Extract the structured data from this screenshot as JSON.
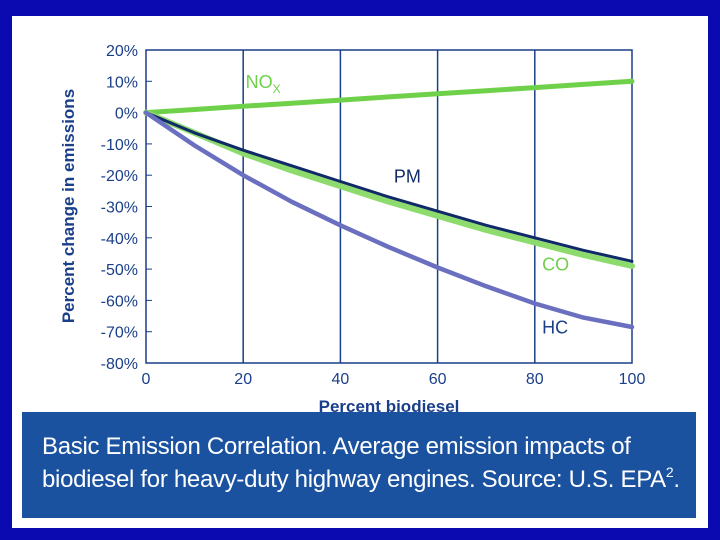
{
  "chart_data": {
    "type": "line",
    "title": "",
    "xlabel": "Percent biodiesel",
    "ylabel": "Percent change in emissions",
    "xlim": [
      0,
      100
    ],
    "ylim": [
      -80,
      20
    ],
    "x_ticks": [
      0,
      20,
      40,
      60,
      80,
      100
    ],
    "x_tick_labels": [
      "0",
      "20",
      "40",
      "60",
      "80",
      "100"
    ],
    "y_ticks": [
      20,
      10,
      0,
      -10,
      -20,
      -30,
      -40,
      -50,
      -60,
      -70,
      -80
    ],
    "y_tick_labels": [
      "20%",
      "10%",
      "0%",
      "-10%",
      "-20%",
      "-30%",
      "-40%",
      "-50%",
      "-60%",
      "-70%",
      "-80%"
    ],
    "grid": "vertical at x ticks",
    "x": [
      0,
      10,
      20,
      30,
      40,
      50,
      60,
      70,
      80,
      90,
      100
    ],
    "series": [
      {
        "name": "NOx",
        "label_main": "NO",
        "label_sub": "X",
        "color": "#6fd14a",
        "values": [
          0,
          1,
          2,
          3,
          4,
          5,
          6,
          7,
          8,
          9,
          10
        ]
      },
      {
        "name": "PM",
        "label_main": "PM",
        "color": "#0f2a66",
        "values": [
          0,
          -6.5,
          -12,
          -17,
          -22,
          -27,
          -31.5,
          -36,
          -40,
          -44,
          -47.5
        ]
      },
      {
        "name": "CO",
        "label_main": "CO",
        "color": "#8cdb6c",
        "values": [
          0,
          -6.5,
          -13,
          -18.5,
          -23.5,
          -28.5,
          -33,
          -37.5,
          -41.5,
          -45.5,
          -49
        ]
      },
      {
        "name": "HC",
        "label_main": "HC",
        "color": "#6a6fc0",
        "values": [
          0,
          -10.5,
          -20,
          -28.5,
          -36,
          -43,
          -49.5,
          -55.5,
          -61,
          -65.5,
          -68.5
        ]
      }
    ]
  },
  "caption": {
    "line1": "Basic Emission Correlation. Average emission impacts of",
    "line2": "biodiesel for heavy-duty highway engines. Source: U.S. EPA",
    "superscript": "2",
    "end": "."
  }
}
